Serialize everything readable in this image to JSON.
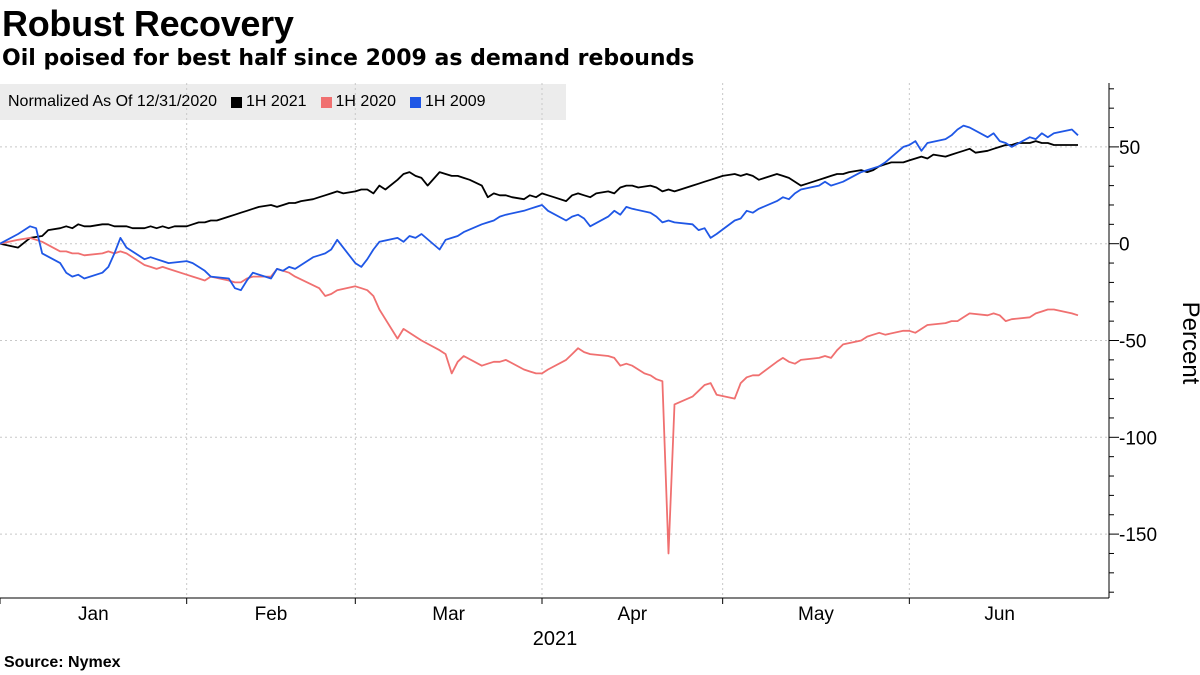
{
  "chart_data": {
    "type": "line",
    "title": "Robust Recovery",
    "subtitle": "Oil poised for best half since 2009 as demand rebounds",
    "legend_label": "Normalized As Of 12/31/2020",
    "xlabel": "2021",
    "ylabel": "Percent",
    "source": "Source: Nymex",
    "ylim": [
      -183,
      83
    ],
    "yticks": [
      50,
      0,
      -50,
      -100,
      -150
    ],
    "ytick_labels": [
      "50",
      "0",
      "-50",
      "-100",
      "-150"
    ],
    "xlim": [
      0,
      181
    ],
    "month_starts": [
      0,
      31,
      59,
      90,
      120,
      151
    ],
    "month_labels": [
      "Jan",
      "Feb",
      "Mar",
      "Apr",
      "May",
      "Jun"
    ],
    "series": [
      {
        "name": "1H 2021",
        "color": "#000000",
        "x": [
          0,
          3,
          5,
          7,
          8,
          10,
          11,
          12,
          13,
          14,
          15,
          17,
          18,
          19,
          20,
          21,
          22,
          24,
          25,
          26,
          27,
          28,
          29,
          31,
          32,
          33,
          34,
          35,
          36,
          38,
          39,
          40,
          41,
          42,
          43,
          45,
          46,
          47,
          48,
          49,
          50,
          52,
          53,
          54,
          55,
          56,
          57,
          59,
          60,
          61,
          62,
          63,
          64,
          66,
          67,
          68,
          69,
          70,
          71,
          73,
          74,
          75,
          76,
          77,
          78,
          80,
          81,
          82,
          83,
          84,
          85,
          87,
          88,
          89,
          90,
          91,
          92,
          94,
          95,
          96,
          97,
          98,
          99,
          101,
          102,
          103,
          104,
          105,
          106,
          108,
          109,
          110,
          111,
          112,
          113,
          115,
          116,
          117,
          118,
          119,
          120,
          122,
          123,
          124,
          125,
          126,
          127,
          129,
          130,
          131,
          132,
          133,
          134,
          136,
          137,
          138,
          139,
          140,
          141,
          143,
          144,
          145,
          146,
          147,
          148,
          150,
          151,
          152,
          153,
          154,
          155,
          157,
          158,
          159,
          160,
          161,
          162,
          164,
          165,
          166,
          167,
          168,
          169,
          171,
          172,
          173,
          174,
          175,
          176,
          178,
          179
        ],
        "values": [
          0,
          -2,
          3,
          4,
          7,
          8,
          9,
          8,
          10,
          9,
          9,
          10,
          10,
          9,
          9,
          9,
          8,
          8,
          9,
          8,
          9,
          8,
          9,
          9,
          10,
          11,
          11,
          12,
          12,
          14,
          15,
          16,
          17,
          18,
          19,
          20,
          19,
          20,
          21,
          21,
          22,
          23,
          24,
          25,
          26,
          27,
          26,
          27,
          28,
          28,
          26,
          30,
          28,
          33,
          36,
          37,
          35,
          34,
          30,
          37,
          36,
          35,
          35,
          34,
          33,
          30,
          24,
          26,
          25,
          25,
          24,
          23,
          25,
          24,
          26,
          25,
          24,
          22,
          25,
          26,
          25,
          24,
          26,
          27,
          26,
          29,
          30,
          30,
          29,
          30,
          29,
          27,
          28,
          27,
          28,
          30,
          31,
          32,
          33,
          34,
          35,
          36,
          35,
          36,
          35,
          33,
          34,
          36,
          35,
          34,
          32,
          30,
          31,
          33,
          34,
          35,
          36,
          36,
          37,
          38,
          37,
          38,
          40,
          41,
          42,
          42,
          43,
          44,
          45,
          44,
          46,
          45,
          46,
          47,
          48,
          49,
          47,
          48,
          49,
          50,
          51,
          51,
          52,
          52,
          53,
          52,
          52,
          51,
          51,
          51,
          51
        ]
      },
      {
        "name": "1H 2020",
        "color": "#f07070",
        "x": [
          0,
          3,
          5,
          6,
          7,
          10,
          11,
          12,
          13,
          14,
          17,
          18,
          19,
          20,
          21,
          24,
          25,
          26,
          27,
          28,
          31,
          32,
          33,
          34,
          35,
          38,
          39,
          40,
          41,
          42,
          45,
          46,
          47,
          48,
          49,
          53,
          54,
          55,
          56,
          59,
          60,
          61,
          62,
          63,
          66,
          67,
          68,
          69,
          70,
          73,
          74,
          75,
          76,
          77,
          80,
          81,
          82,
          83,
          84,
          87,
          88,
          89,
          90,
          91,
          94,
          95,
          96,
          97,
          98,
          101,
          102,
          103,
          104,
          105,
          107,
          108,
          109,
          110,
          111,
          112,
          115,
          116,
          117,
          118,
          119,
          122,
          123,
          124,
          125,
          126,
          129,
          130,
          131,
          132,
          133,
          136,
          137,
          138,
          139,
          140,
          143,
          144,
          145,
          146,
          147,
          150,
          151,
          152,
          153,
          154,
          157,
          158,
          159,
          160,
          161,
          164,
          165,
          166,
          167,
          168,
          171,
          172,
          173,
          174,
          175,
          178,
          179
        ],
        "values": [
          0,
          2,
          3,
          2,
          1,
          -4,
          -4,
          -5,
          -5,
          -6,
          -5,
          -4,
          -5,
          -4,
          -5,
          -11,
          -12,
          -13,
          -12,
          -13,
          -16,
          -17,
          -18,
          -19,
          -17,
          -19,
          -20,
          -20,
          -18,
          -17,
          -17,
          -13,
          -14,
          -15,
          -17,
          -23,
          -27,
          -26,
          -24,
          -22,
          -23,
          -24,
          -27,
          -34,
          -49,
          -44,
          -46,
          -48,
          -50,
          -55,
          -57,
          -67,
          -61,
          -58,
          -63,
          -62,
          -61,
          -61,
          -60,
          -65,
          -66,
          -67,
          -67,
          -65,
          -60,
          -57,
          -54,
          -56,
          -57,
          -58,
          -59,
          -63,
          -62,
          -63,
          -67,
          -68,
          -70,
          -71,
          -160,
          -83,
          -79,
          -76,
          -73,
          -72,
          -78,
          -80,
          -72,
          -69,
          -68,
          -68,
          -61,
          -59,
          -61,
          -62,
          -60,
          -59,
          -58,
          -59,
          -55,
          -52,
          -50,
          -48,
          -47,
          -46,
          -47,
          -45,
          -45,
          -46,
          -44,
          -42,
          -41,
          -40,
          -40,
          -38,
          -36,
          -37,
          -36,
          -37,
          -40,
          -39,
          -38,
          -36,
          -35,
          -34,
          -34,
          -36,
          -37
        ]
      },
      {
        "name": "1H 2009",
        "color": "#1f57e6",
        "x": [
          0,
          3,
          5,
          6,
          7,
          10,
          11,
          12,
          13,
          14,
          17,
          18,
          19,
          20,
          21,
          24,
          25,
          26,
          27,
          28,
          31,
          32,
          33,
          34,
          35,
          38,
          39,
          40,
          41,
          42,
          45,
          46,
          47,
          48,
          49,
          52,
          53,
          54,
          55,
          56,
          59,
          60,
          61,
          62,
          63,
          66,
          67,
          68,
          69,
          70,
          73,
          74,
          75,
          76,
          77,
          80,
          81,
          82,
          83,
          84,
          87,
          88,
          89,
          90,
          91,
          94,
          95,
          96,
          97,
          98,
          101,
          102,
          103,
          104,
          105,
          108,
          109,
          110,
          111,
          112,
          115,
          116,
          117,
          118,
          119,
          122,
          123,
          124,
          125,
          126,
          129,
          130,
          131,
          132,
          133,
          136,
          137,
          138,
          139,
          140,
          143,
          144,
          145,
          146,
          147,
          150,
          151,
          152,
          153,
          154,
          157,
          158,
          159,
          160,
          161,
          164,
          165,
          166,
          167,
          168,
          171,
          172,
          173,
          174,
          175,
          178,
          179
        ],
        "values": [
          0,
          5,
          9,
          8,
          -5,
          -10,
          -15,
          -17,
          -16,
          -18,
          -15,
          -12,
          -5,
          3,
          -2,
          -8,
          -7,
          -8,
          -9,
          -10,
          -9,
          -10,
          -12,
          -14,
          -17,
          -18,
          -23,
          -24,
          -19,
          -15,
          -18,
          -13,
          -14,
          -12,
          -13,
          -7,
          -6,
          -5,
          -3,
          2,
          -10,
          -12,
          -8,
          -3,
          1,
          3,
          1,
          4,
          3,
          5,
          -3,
          2,
          3,
          4,
          6,
          10,
          11,
          12,
          14,
          15,
          17,
          18,
          19,
          20,
          17,
          12,
          14,
          15,
          13,
          9,
          14,
          17,
          15,
          19,
          18,
          16,
          14,
          11,
          12,
          11,
          10,
          7,
          8,
          3,
          5,
          12,
          13,
          17,
          16,
          18,
          22,
          24,
          23,
          26,
          28,
          30,
          32,
          30,
          31,
          32,
          37,
          38,
          39,
          40,
          42,
          50,
          51,
          53,
          48,
          52,
          54,
          56,
          59,
          61,
          60,
          55,
          57,
          53,
          52,
          50,
          55,
          54,
          57,
          55,
          57,
          59,
          56
        ]
      }
    ]
  }
}
